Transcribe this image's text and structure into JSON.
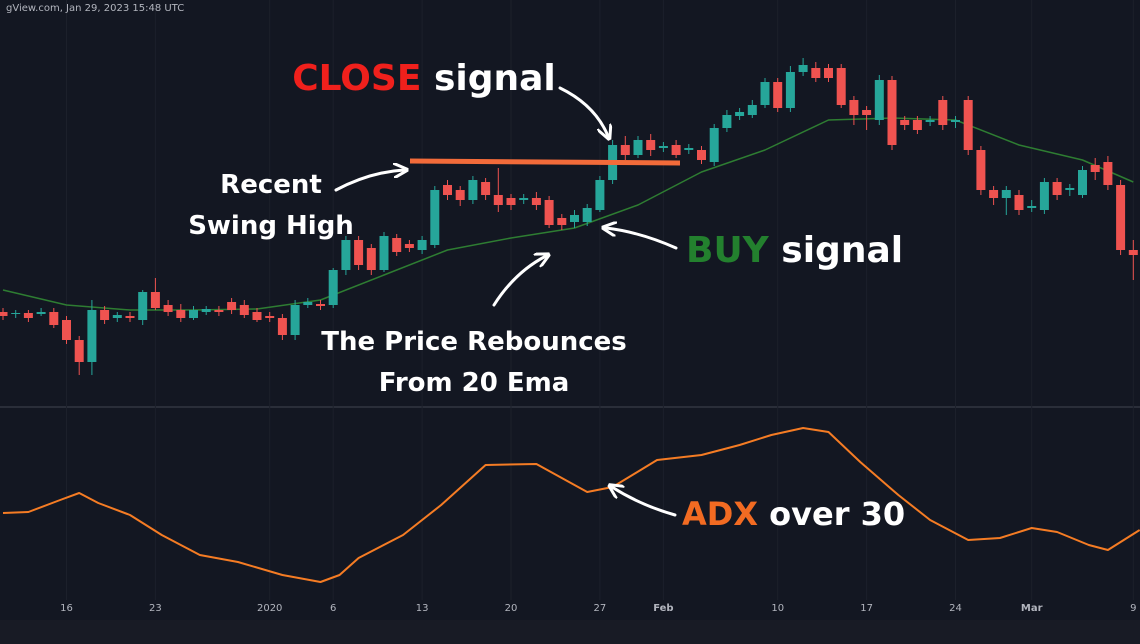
{
  "watermark": "gView.com, Jan 29, 2023 15:48 UTC",
  "chart_data": [
    {
      "type": "candlestick",
      "categories": [
        null,
        null,
        null,
        null,
        null,
        "16",
        null,
        null,
        null,
        null,
        null,
        null,
        "23",
        null,
        null,
        null,
        null,
        null,
        null,
        null,
        null,
        "2020",
        null,
        null,
        null,
        null,
        "6",
        null,
        null,
        null,
        null,
        null,
        null,
        "13",
        null,
        null,
        null,
        null,
        null,
        null,
        "20",
        null,
        null,
        null,
        null,
        null,
        null,
        "27",
        null,
        null,
        null,
        null,
        "Feb",
        null,
        null,
        null,
        null,
        null,
        null,
        null,
        null,
        "10",
        null,
        null,
        null,
        null,
        null,
        null,
        "17",
        null,
        null,
        null,
        null,
        null,
        null,
        "24",
        null,
        null,
        null,
        null,
        null,
        "Mar",
        null,
        null,
        null,
        null,
        null,
        null,
        null,
        "9"
      ],
      "open": [
        88,
        86,
        87,
        86,
        88,
        80,
        60,
        38,
        90,
        82,
        84,
        80,
        108,
        95,
        90,
        82,
        88,
        90,
        98,
        95,
        88,
        84,
        82,
        65,
        95,
        96,
        95,
        130,
        160,
        152,
        130,
        162,
        156,
        150,
        155,
        215,
        210,
        200,
        218,
        205,
        202,
        200,
        202,
        200,
        182,
        178,
        178,
        190,
        220,
        255,
        245,
        260,
        252,
        255,
        250,
        250,
        238,
        272,
        284,
        285,
        295,
        318,
        292,
        328,
        332,
        332,
        332,
        300,
        290,
        280,
        320,
        280,
        280,
        278,
        300,
        278,
        300,
        250,
        210,
        202,
        205,
        192,
        190,
        218,
        210,
        205,
        235,
        238,
        215,
        150
      ],
      "high": [
        92,
        90,
        90,
        92,
        92,
        84,
        64,
        100,
        94,
        88,
        88,
        110,
        122,
        100,
        96,
        94,
        94,
        94,
        102,
        100,
        92,
        88,
        86,
        100,
        102,
        100,
        132,
        164,
        164,
        156,
        168,
        166,
        160,
        164,
        214,
        220,
        214,
        224,
        222,
        232,
        206,
        206,
        208,
        204,
        186,
        190,
        196,
        224,
        260,
        264,
        264,
        266,
        258,
        260,
        256,
        254,
        276,
        290,
        292,
        300,
        322,
        322,
        334,
        342,
        338,
        336,
        336,
        304,
        294,
        325,
        324,
        284,
        284,
        284,
        304,
        284,
        304,
        254,
        214,
        214,
        210,
        200,
        222,
        222,
        216,
        234,
        242,
        244,
        220,
        160
      ],
      "low": [
        80,
        82,
        78,
        84,
        72,
        56,
        25,
        25,
        76,
        78,
        78,
        75,
        90,
        84,
        78,
        80,
        85,
        84,
        86,
        82,
        78,
        78,
        60,
        60,
        92,
        90,
        92,
        125,
        130,
        125,
        128,
        144,
        148,
        146,
        152,
        200,
        194,
        196,
        200,
        188,
        190,
        196,
        190,
        172,
        170,
        172,
        174,
        188,
        216,
        240,
        242,
        244,
        248,
        242,
        246,
        236,
        234,
        268,
        280,
        282,
        292,
        288,
        288,
        324,
        318,
        318,
        292,
        275,
        270,
        275,
        250,
        270,
        266,
        274,
        270,
        272,
        245,
        205,
        195,
        185,
        185,
        188,
        186,
        200,
        204,
        202,
        220,
        210,
        145,
        120
      ],
      "close": [
        84,
        87,
        82,
        88,
        75,
        60,
        38,
        90,
        80,
        85,
        82,
        108,
        92,
        88,
        82,
        90,
        91,
        88,
        90,
        85,
        80,
        82,
        65,
        95,
        98,
        94,
        130,
        160,
        135,
        130,
        164,
        148,
        152,
        160,
        210,
        205,
        200,
        220,
        205,
        195,
        195,
        202,
        195,
        175,
        175,
        185,
        192,
        220,
        255,
        245,
        260,
        250,
        254,
        245,
        252,
        240,
        272,
        285,
        288,
        295,
        318,
        292,
        328,
        335,
        322,
        322,
        295,
        285,
        285,
        320,
        255,
        275,
        270,
        280,
        275,
        280,
        250,
        210,
        202,
        210,
        190,
        194,
        218,
        205,
        212,
        230,
        228,
        215,
        150,
        145
      ],
      "up_color": "#26a69a",
      "down_color": "#ef5350",
      "lines": [
        {
          "color": "#2e7d32",
          "x": [
            0,
            5,
            10,
            15,
            20,
            25,
            30,
            35,
            40,
            45,
            50,
            55,
            60,
            65,
            70,
            75,
            80,
            85,
            89
          ],
          "values": [
            110,
            95,
            90,
            90,
            91,
            100,
            125,
            150,
            162,
            172,
            195,
            228,
            250,
            280,
            282,
            280,
            255,
            240,
            218
          ]
        }
      ],
      "ylim": [
        0,
        400
      ],
      "annotations": [
        {
          "highlight": "CLOSE",
          "text": " signal",
          "color": "#f0201c"
        },
        {
          "lines": [
            "Recent",
            "Swing High"
          ]
        },
        {
          "highlight": "BUY",
          "text": " signal",
          "color": "#23802e"
        },
        {
          "lines": [
            "The Price Rebounces",
            "From 20 Ema"
          ]
        }
      ]
    },
    {
      "type": "line",
      "color": "#f57c24",
      "x": [
        0,
        2,
        4.5,
        6,
        7.5,
        10,
        12.5,
        15.5,
        18.5,
        22,
        25,
        26.5,
        28,
        31.5,
        34.5,
        38,
        42,
        44,
        46,
        48,
        51.5,
        55,
        58,
        60.5,
        63,
        65,
        67.5,
        70.5,
        73,
        76,
        78.5,
        81,
        83,
        85.5,
        87,
        89.5
      ],
      "values": [
        87,
        88,
        100,
        107,
        97,
        85,
        65,
        45,
        38,
        25,
        18,
        25,
        42,
        65,
        95,
        135,
        136,
        122,
        108,
        113,
        140,
        145,
        155,
        165,
        172,
        168,
        138,
        105,
        80,
        60,
        62,
        72,
        68,
        55,
        50,
        70
      ],
      "ylim": [
        0,
        190
      ],
      "annotations": [
        {
          "highlight": "ADX",
          "text": " over 30",
          "color": "#f26b22"
        }
      ]
    }
  ]
}
